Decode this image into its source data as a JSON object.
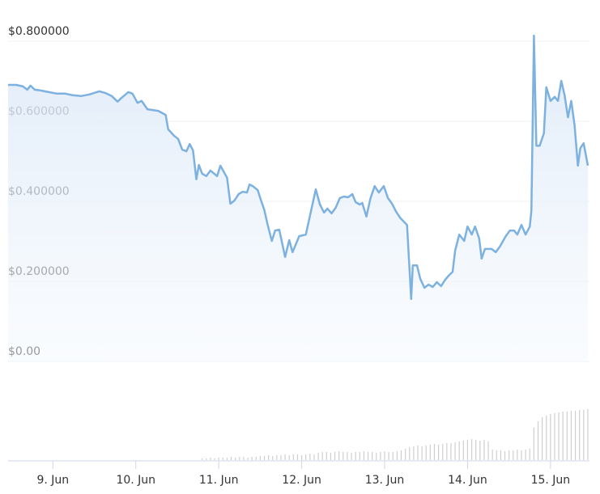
{
  "chart_data": {
    "type": "line",
    "x": [
      8.46,
      8.56,
      8.64,
      8.69,
      8.73,
      8.78,
      8.85,
      8.95,
      9.05,
      9.15,
      9.24,
      9.34,
      9.44,
      9.56,
      9.63,
      9.71,
      9.78,
      9.83,
      9.91,
      9.96,
      10.02,
      10.07,
      10.14,
      10.27,
      10.36,
      10.39,
      10.46,
      10.51,
      10.56,
      10.61,
      10.65,
      10.69,
      10.73,
      10.76,
      10.8,
      10.85,
      10.9,
      10.98,
      11.02,
      11.1,
      11.14,
      11.19,
      11.24,
      11.29,
      11.34,
      11.37,
      11.41,
      11.47,
      11.5,
      11.55,
      11.59,
      11.64,
      11.68,
      11.73,
      11.8,
      11.85,
      11.89,
      11.97,
      12.05,
      12.11,
      12.17,
      12.22,
      12.27,
      12.31,
      12.36,
      12.41,
      12.46,
      12.51,
      12.56,
      12.61,
      12.65,
      12.7,
      12.73,
      12.78,
      12.83,
      12.88,
      12.93,
      12.99,
      13.04,
      13.09,
      13.14,
      13.19,
      13.27,
      13.32,
      13.34,
      13.39,
      13.43,
      13.48,
      13.53,
      13.58,
      13.63,
      13.68,
      13.73,
      13.78,
      13.82,
      13.85,
      13.9,
      13.96,
      14.0,
      14.05,
      14.09,
      14.14,
      14.17,
      14.21,
      14.29,
      14.34,
      14.39,
      14.46,
      14.51,
      14.56,
      14.6,
      14.65,
      14.7,
      14.75,
      14.77,
      14.8,
      14.83,
      14.87,
      14.92,
      14.95,
      15.0,
      15.05,
      15.09,
      15.13,
      15.17,
      15.21,
      15.25,
      15.29,
      15.33,
      15.36,
      15.4,
      15.45
    ],
    "values": [
      0.691,
      0.691,
      0.687,
      0.679,
      0.689,
      0.679,
      0.677,
      0.673,
      0.669,
      0.669,
      0.665,
      0.663,
      0.667,
      0.675,
      0.671,
      0.663,
      0.649,
      0.659,
      0.673,
      0.669,
      0.646,
      0.651,
      0.63,
      0.626,
      0.616,
      0.58,
      0.564,
      0.556,
      0.529,
      0.525,
      0.543,
      0.527,
      0.455,
      0.491,
      0.469,
      0.463,
      0.477,
      0.463,
      0.489,
      0.459,
      0.394,
      0.402,
      0.418,
      0.424,
      0.422,
      0.442,
      0.438,
      0.428,
      0.408,
      0.378,
      0.341,
      0.301,
      0.327,
      0.329,
      0.261,
      0.303,
      0.273,
      0.313,
      0.317,
      0.374,
      0.43,
      0.392,
      0.372,
      0.382,
      0.37,
      0.384,
      0.408,
      0.412,
      0.41,
      0.418,
      0.398,
      0.392,
      0.396,
      0.362,
      0.408,
      0.438,
      0.422,
      0.438,
      0.408,
      0.394,
      0.374,
      0.358,
      0.341,
      0.156,
      0.24,
      0.24,
      0.206,
      0.184,
      0.192,
      0.186,
      0.198,
      0.188,
      0.204,
      0.216,
      0.224,
      0.277,
      0.317,
      0.301,
      0.337,
      0.317,
      0.337,
      0.307,
      0.257,
      0.281,
      0.281,
      0.273,
      0.287,
      0.313,
      0.327,
      0.327,
      0.317,
      0.341,
      0.317,
      0.337,
      0.378,
      0.814,
      0.539,
      0.539,
      0.57,
      0.685,
      0.651,
      0.661,
      0.651,
      0.701,
      0.665,
      0.61,
      0.651,
      0.59,
      0.489,
      0.533,
      0.545,
      0.489
    ],
    "color": "#7cb1e0",
    "xlim": [
      8.46,
      15.47
    ],
    "xticks": [
      {
        "value": 9,
        "label": "9. Jun"
      },
      {
        "value": 10,
        "label": "10. Jun"
      },
      {
        "value": 11,
        "label": "11. Jun"
      },
      {
        "value": 12,
        "label": "12. Jun"
      },
      {
        "value": 13,
        "label": "13. Jun"
      },
      {
        "value": 14,
        "label": "14. Jun"
      },
      {
        "value": 15,
        "label": "15. Jun"
      }
    ],
    "ylim": [
      0,
      0.85
    ],
    "yticks": [
      {
        "value": 0,
        "label": "$0.00"
      },
      {
        "value": 0.2,
        "label": "$0.200000"
      },
      {
        "value": 0.4,
        "label": "$0.400000"
      },
      {
        "value": 0.6,
        "label": "$0.600000"
      },
      {
        "value": 0.8,
        "label": "$0.800000"
      }
    ],
    "grid": true,
    "volume": {
      "color": "#cfcfcf",
      "x": [
        10.8,
        10.85,
        10.9,
        10.95,
        11.0,
        11.05,
        11.1,
        11.15,
        11.2,
        11.25,
        11.3,
        11.35,
        11.4,
        11.45,
        11.5,
        11.55,
        11.6,
        11.65,
        11.7,
        11.75,
        11.8,
        11.85,
        11.9,
        11.95,
        12.0,
        12.05,
        12.1,
        12.15,
        12.2,
        12.25,
        12.3,
        12.35,
        12.4,
        12.45,
        12.5,
        12.55,
        12.6,
        12.65,
        12.7,
        12.75,
        12.8,
        12.85,
        12.9,
        12.95,
        13.0,
        13.05,
        13.1,
        13.15,
        13.2,
        13.25,
        13.3,
        13.35,
        13.4,
        13.45,
        13.5,
        13.55,
        13.6,
        13.65,
        13.7,
        13.75,
        13.8,
        13.85,
        13.9,
        13.95,
        14.0,
        14.05,
        14.1,
        14.15,
        14.2,
        14.25,
        14.3,
        14.35,
        14.4,
        14.45,
        14.5,
        14.55,
        14.6,
        14.65,
        14.7,
        14.75,
        14.8,
        14.85,
        14.9,
        14.95,
        15.0,
        15.05,
        15.1,
        15.15,
        15.2,
        15.25,
        15.3,
        15.35,
        15.4,
        15.45
      ],
      "values": [
        2,
        2,
        3,
        2,
        3,
        3,
        3,
        4,
        3,
        4,
        4,
        3,
        4,
        4,
        5,
        5,
        6,
        5,
        6,
        6,
        7,
        6,
        7,
        7,
        6,
        7,
        8,
        7,
        9,
        10,
        10,
        9,
        10,
        11,
        10,
        10,
        9,
        10,
        10,
        11,
        10,
        10,
        9,
        10,
        11,
        10,
        10,
        11,
        12,
        14,
        16,
        17,
        18,
        17,
        18,
        19,
        20,
        19,
        20,
        21,
        21,
        22,
        23,
        24,
        25,
        26,
        25,
        24,
        25,
        23,
        13,
        12,
        12,
        11,
        12,
        12,
        13,
        12,
        13,
        14,
        40,
        48,
        53,
        55,
        57,
        58,
        59,
        60,
        60,
        61,
        61,
        62,
        62,
        63
      ]
    }
  }
}
